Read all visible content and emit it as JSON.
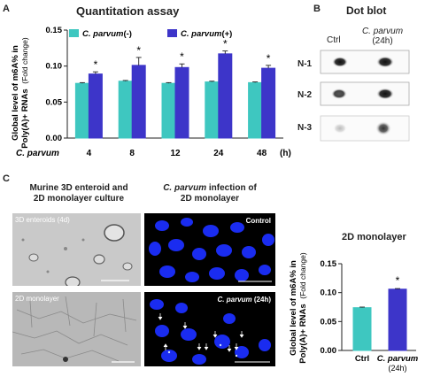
{
  "panel_letters": {
    "a": "A",
    "b": "B",
    "c": "C"
  },
  "panel_a": {
    "title": "Quantitation assay",
    "ylabel_1": "Global level of m6A% in",
    "ylabel_2": "Poly(A)+ RNAs",
    "ylabel_unit": "(Fold change)",
    "legend_neg_prefix": "C. parvum",
    "legend_neg_suffix": "(-)",
    "legend_pos_prefix": "C. parvum",
    "legend_pos_suffix": "(+)",
    "xrow_label": "C. parvum",
    "x_unit": "(h)",
    "star": "*"
  },
  "panel_b": {
    "title": "Dot blot",
    "col_ctrl": "Ctrl",
    "col_cp": "C. parvum",
    "col_cp_time": "(24h)",
    "rows": [
      "N-1",
      "N-2",
      "N-3"
    ]
  },
  "panel_c": {
    "col1_title_1": "Murine 3D enteroid and",
    "col1_title_2": "2D monolayer culture",
    "col2_title_1a": "C. parvum",
    "col2_title_1b": " infection of",
    "col2_title_2": "2D monolayer",
    "img_3d_label": "3D enteroids (4d)",
    "img_2d_label": "2D monolayer",
    "img_ctrl_label": "Control",
    "img_cp_label_a": "C. parvum",
    "img_cp_label_b": " (24h)",
    "chart_title": "2D monolayer",
    "ylabel_1": "Global level of m6A% in",
    "ylabel_2": "Poly(A)+ RNAs",
    "ylabel_unit": "(Fold change)",
    "x_ctrl": "Ctrl",
    "x_cp": "C. parvum",
    "x_cp_time": "(24h)",
    "star": "*"
  },
  "colors": {
    "neg": "#3ec7c0",
    "pos": "#3d35c9",
    "nucleus": "#1a2cf0"
  },
  "chart_data": [
    {
      "type": "bar",
      "title": "Quantitation assay",
      "categories": [
        "4",
        "8",
        "12",
        "24",
        "48"
      ],
      "series": [
        {
          "name": "C. parvum(-)",
          "values": [
            0.076,
            0.079,
            0.076,
            0.078,
            0.077
          ],
          "errors": [
            0.001,
            0.001,
            0.001,
            0.001,
            0.001
          ]
        },
        {
          "name": "C. parvum(+)",
          "values": [
            0.089,
            0.101,
            0.098,
            0.117,
            0.097
          ],
          "errors": [
            0.003,
            0.011,
            0.005,
            0.004,
            0.004
          ]
        }
      ],
      "significant": [
        true,
        true,
        true,
        true,
        true
      ],
      "ylim": [
        0,
        0.15
      ],
      "yticks": [
        "0.00",
        "0.05",
        "0.10",
        "0.15"
      ]
    },
    {
      "type": "bar",
      "title": "2D monolayer",
      "categories": [
        "Ctrl",
        "C. parvum (24h)"
      ],
      "values": [
        0.074,
        0.106
      ],
      "errors": [
        0.001,
        0.001
      ],
      "significant": [
        false,
        true
      ],
      "ylim": [
        0,
        0.15
      ],
      "yticks": [
        "0.00",
        "0.05",
        "0.10",
        "0.15"
      ]
    }
  ]
}
